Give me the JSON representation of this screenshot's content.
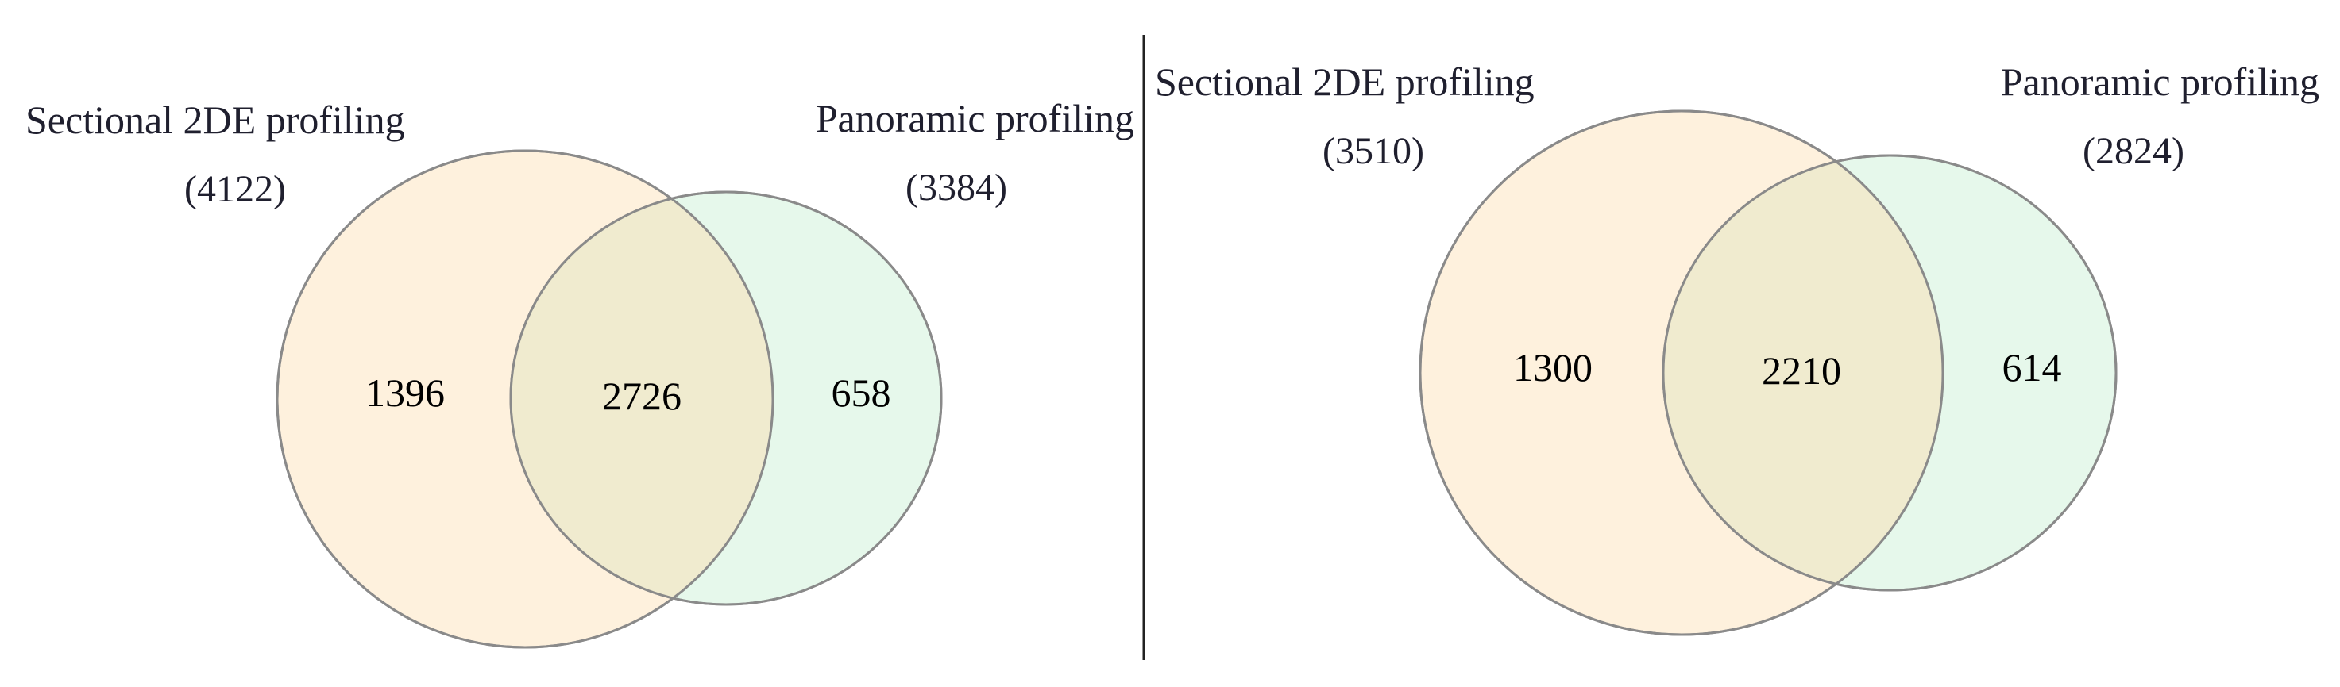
{
  "colors": {
    "sectional_fill": "#fde7c6",
    "panoramic_fill": "#d5f4dd",
    "overlap_fill": "#f0ebcf",
    "circle_stroke": "#8a8a8a",
    "divider": "#222222",
    "text": "#1f1f2e"
  },
  "panels": [
    {
      "sets": [
        {
          "name": "Sectional 2DE profiling",
          "total": "(4122)"
        },
        {
          "name": "Panoramic profiling",
          "total": "(3384)"
        }
      ],
      "regions": {
        "only_a": "1396",
        "both": "2726",
        "only_b": "658"
      }
    },
    {
      "sets": [
        {
          "name": "Sectional 2DE profiling",
          "total": "(3510)"
        },
        {
          "name": "Panoramic profiling",
          "total": "(2824)"
        }
      ],
      "regions": {
        "only_a": "1300",
        "both": "2210",
        "only_b": "614"
      }
    }
  ]
}
